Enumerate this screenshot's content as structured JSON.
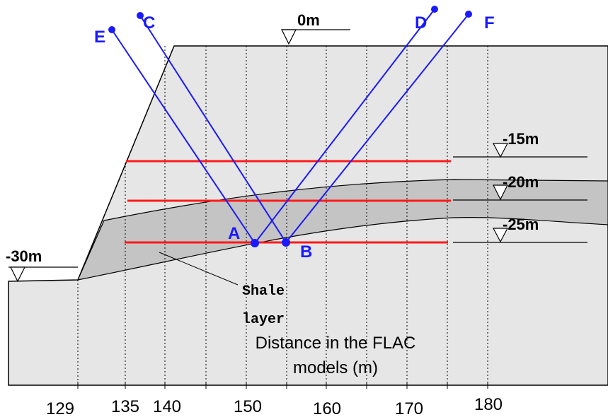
{
  "points": {
    "A": "A",
    "B": "B",
    "C": "C",
    "D": "D",
    "E": "E",
    "F": "F"
  },
  "levels": {
    "top": "0m",
    "l15": "-15m",
    "l20": "-20m",
    "l25": "-25m",
    "l30": "-30m"
  },
  "shale_label": [
    "Shale",
    "layer"
  ],
  "axis_title": [
    "Distance in the FLAC",
    "models (m)"
  ],
  "x_labels": [
    "129",
    "135",
    "140",
    "150",
    "160",
    "170",
    "180"
  ]
}
